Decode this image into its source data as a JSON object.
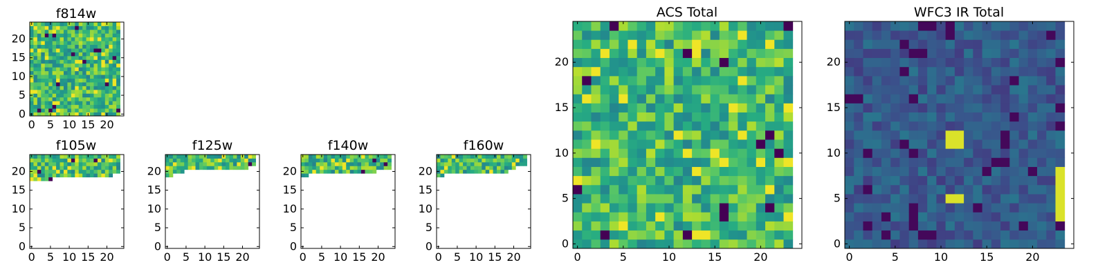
{
  "chart_data": [
    {
      "id": "f814w",
      "type": "heatmap",
      "title": "f814w",
      "grid_size": [
        24,
        25
      ],
      "xlim": [
        -0.5,
        24.5
      ],
      "ylim": [
        -0.5,
        24.5
      ],
      "colormap": "viridis",
      "coverage": {
        "type": "full"
      },
      "value_range": [
        0.0,
        1.0
      ],
      "value_profile": "high",
      "xticks": [
        "0",
        "5",
        "10",
        "15",
        "20"
      ],
      "yticks": [
        "0",
        "5",
        "10",
        "15",
        "20"
      ]
    },
    {
      "id": "f105w",
      "type": "heatmap",
      "title": "f105w",
      "grid_size": [
        24,
        25
      ],
      "xlim": [
        -0.5,
        24.5
      ],
      "ylim": [
        -0.5,
        24.5
      ],
      "colormap": "viridis",
      "coverage": {
        "type": "top",
        "row_start": [
          18,
          18,
          18,
          18,
          18,
          18,
          19,
          19,
          19,
          19,
          19,
          19,
          19,
          19,
          19,
          19,
          19,
          19,
          19,
          19,
          19,
          19,
          20,
          20
        ]
      },
      "value_range": [
        0.0,
        1.0
      ],
      "value_profile": "high",
      "xticks": [
        "0",
        "5",
        "10",
        "15",
        "20"
      ],
      "yticks": [
        "0",
        "5",
        "10",
        "15",
        "20"
      ]
    },
    {
      "id": "f125w",
      "type": "heatmap",
      "title": "f125w",
      "grid_size": [
        24,
        25
      ],
      "xlim": [
        -0.5,
        24.5
      ],
      "ylim": [
        -0.5,
        24.5
      ],
      "colormap": "viridis",
      "coverage": {
        "type": "top",
        "row_start": [
          19,
          19,
          20,
          20,
          20,
          21,
          21,
          21,
          21,
          21,
          21,
          21,
          21,
          21,
          21,
          21,
          21,
          21,
          21,
          21,
          21,
          21,
          22,
          22
        ]
      },
      "value_range": [
        0.0,
        1.0
      ],
      "value_profile": "high",
      "xticks": [
        "0",
        "5",
        "10",
        "15",
        "20"
      ],
      "yticks": [
        "0",
        "5",
        "10",
        "15",
        "20"
      ]
    },
    {
      "id": "f140w",
      "type": "heatmap",
      "title": "f140w",
      "grid_size": [
        24,
        25
      ],
      "xlim": [
        -0.5,
        24.5
      ],
      "ylim": [
        -0.5,
        24.5
      ],
      "colormap": "viridis",
      "coverage": {
        "type": "top",
        "row_start": [
          19,
          19,
          20,
          20,
          20,
          20,
          20,
          20,
          20,
          20,
          20,
          20,
          20,
          20,
          20,
          20,
          20,
          20,
          20,
          20,
          21,
          21,
          21,
          21
        ]
      },
      "value_range": [
        0.0,
        1.0
      ],
      "value_profile": "high",
      "xticks": [
        "0",
        "5",
        "10",
        "15",
        "20"
      ],
      "yticks": [
        "0",
        "5",
        "10",
        "15",
        "20"
      ]
    },
    {
      "id": "f160w",
      "type": "heatmap",
      "title": "f160w",
      "grid_size": [
        24,
        25
      ],
      "xlim": [
        -0.5,
        24.5
      ],
      "ylim": [
        -0.5,
        24.5
      ],
      "colormap": "viridis",
      "coverage": {
        "type": "top",
        "row_start": [
          19,
          19,
          20,
          20,
          20,
          20,
          20,
          20,
          20,
          20,
          20,
          20,
          20,
          20,
          20,
          20,
          20,
          20,
          20,
          21,
          21,
          22,
          22,
          22
        ]
      },
      "value_range": [
        0.0,
        1.0
      ],
      "value_profile": "high",
      "xticks": [
        "0",
        "5",
        "10",
        "15",
        "20"
      ],
      "yticks": [
        "0",
        "5",
        "10",
        "15",
        "20"
      ]
    },
    {
      "id": "acs-total",
      "type": "heatmap",
      "title": "ACS Total",
      "grid_size": [
        24,
        25
      ],
      "xlim": [
        -0.5,
        24.5
      ],
      "ylim": [
        -0.5,
        24.5
      ],
      "colormap": "viridis",
      "coverage": {
        "type": "full"
      },
      "value_range": [
        0.0,
        1.0
      ],
      "value_profile": "high",
      "xticks": [
        "0",
        "5",
        "10",
        "15",
        "20"
      ],
      "yticks": [
        "0",
        "5",
        "10",
        "15",
        "20"
      ]
    },
    {
      "id": "wfc3-ir-total",
      "type": "heatmap",
      "title": "WFC3 IR Total",
      "grid_size": [
        24,
        25
      ],
      "xlim": [
        -0.5,
        24.5
      ],
      "ylim": [
        -0.5,
        24.5
      ],
      "colormap": "viridis",
      "coverage": {
        "type": "full"
      },
      "value_range": [
        0.0,
        1.0
      ],
      "value_profile": "low",
      "hotspots": [
        {
          "x": 11,
          "y": 11,
          "w": 2,
          "h": 2,
          "value": 0.95
        },
        {
          "x": 11,
          "y": 5,
          "w": 2,
          "h": 1,
          "value": 0.95
        },
        {
          "x": 23,
          "y": 3,
          "w": 1,
          "h": 6,
          "value": 0.95
        }
      ],
      "xticks": [
        "0",
        "5",
        "10",
        "15",
        "20"
      ],
      "yticks": [
        "0",
        "5",
        "10",
        "15",
        "20"
      ]
    }
  ]
}
